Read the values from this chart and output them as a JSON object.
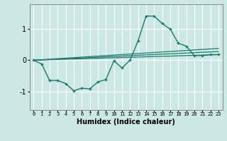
{
  "xlabel": "Humidex (Indice chaleur)",
  "ylabel": "",
  "background_color": "#cce8e4",
  "grid_color": "#ffffff",
  "line_color": "#1a7a6e",
  "xlim": [
    -0.5,
    23.5
  ],
  "ylim": [
    -1.6,
    1.8
  ],
  "yticks": [
    -1,
    0,
    1
  ],
  "xticks": [
    0,
    1,
    2,
    3,
    4,
    5,
    6,
    7,
    8,
    9,
    10,
    11,
    12,
    13,
    14,
    15,
    16,
    17,
    18,
    19,
    20,
    21,
    22,
    23
  ],
  "series": [
    {
      "x": [
        0,
        1,
        2,
        3,
        4,
        5,
        6,
        7,
        8,
        9,
        10,
        11,
        12,
        13,
        14,
        15,
        16,
        17,
        18,
        19,
        20,
        21,
        22,
        23
      ],
      "y": [
        0.0,
        -0.12,
        -0.65,
        -0.65,
        -0.75,
        -0.98,
        -0.9,
        -0.92,
        -0.7,
        -0.62,
        -0.02,
        -0.25,
        0.0,
        0.62,
        1.42,
        1.42,
        1.18,
        1.0,
        0.55,
        0.45,
        0.15,
        0.15,
        0.18,
        0.18
      ]
    },
    {
      "x": [
        0,
        23
      ],
      "y": [
        0.0,
        0.18
      ]
    },
    {
      "x": [
        0,
        23
      ],
      "y": [
        0.0,
        0.28
      ]
    },
    {
      "x": [
        0,
        23
      ],
      "y": [
        0.0,
        0.38
      ]
    }
  ]
}
